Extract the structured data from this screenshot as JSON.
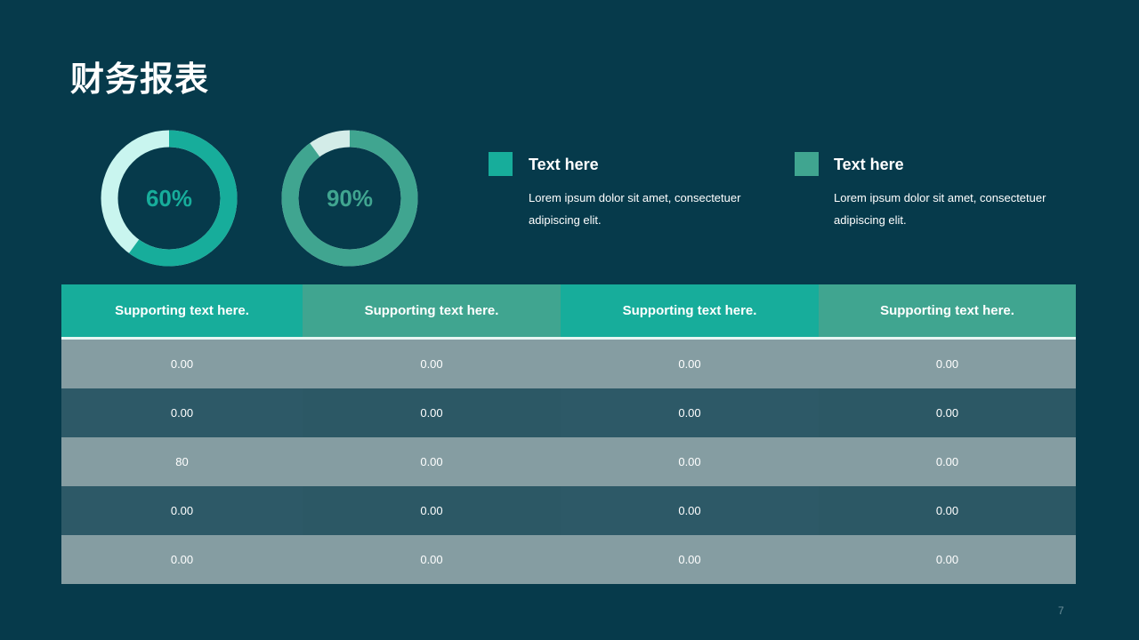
{
  "title": "财务报表",
  "donuts": [
    {
      "label": "60%",
      "percent": 60,
      "colors": {
        "fill": "#17ad9b",
        "rest": "#c9f5ef",
        "text": "#17ad9b"
      }
    },
    {
      "label": "90%",
      "percent": 90,
      "colors": {
        "fill": "#40a590",
        "rest": "#d3ece8",
        "text": "#40a590"
      }
    }
  ],
  "legend": [
    {
      "title": "Text here",
      "desc_line1": "Lorem ipsum dolor sit amet, consectetuer",
      "desc_line2": "adipiscing elit.",
      "color": "#17ad9b"
    },
    {
      "title": "Text here",
      "desc_line1": "Lorem ipsum dolor sit amet, consectetuer",
      "desc_line2": "adipiscing elit.",
      "color": "#40a590"
    }
  ],
  "table": {
    "headers": [
      "Supporting text here.",
      "Supporting text here.",
      "Supporting text here.",
      "Supporting text here."
    ],
    "rows": [
      [
        "0.00",
        "0.00",
        "0.00",
        "0.00"
      ],
      [
        "0.00",
        "0.00",
        "0.00",
        "0.00"
      ],
      [
        "80",
        "0.00",
        "0.00",
        "0.00"
      ],
      [
        "0.00",
        "0.00",
        "0.00",
        "0.00"
      ],
      [
        "0.00",
        "0.00",
        "0.00",
        "0.00"
      ]
    ],
    "colors": {
      "header_a": "#17ad9b",
      "header_b": "#40a590",
      "row_light": "#859da2",
      "row_dark_a": "#2d5967",
      "row_dark_b": "#2c5865"
    }
  },
  "page_number": "7"
}
